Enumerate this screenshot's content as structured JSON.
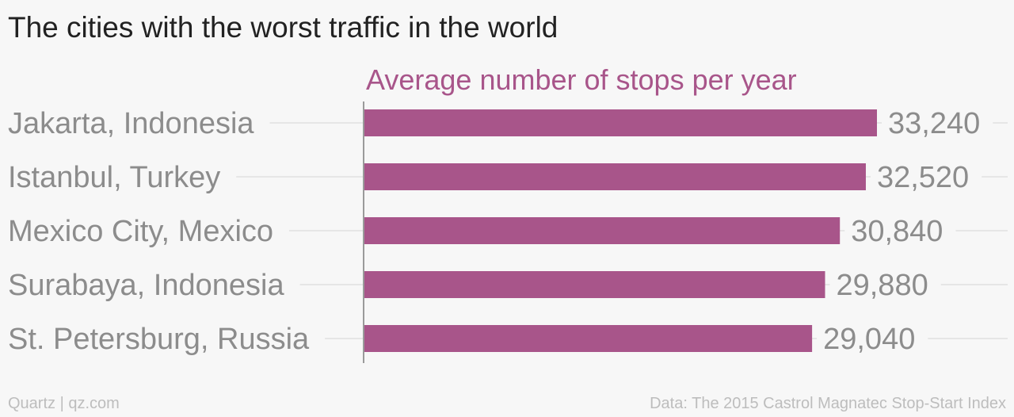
{
  "chart_data": {
    "type": "bar",
    "orientation": "horizontal",
    "title": "The cities with the worst traffic in the world",
    "series_title": "Average number of stops per year",
    "categories": [
      "Jakarta, Indonesia",
      "Istanbul, Turkey",
      "Mexico City, Mexico",
      "Surabaya, Indonesia",
      "St. Petersburg, Russia"
    ],
    "values": [
      33240,
      32520,
      30840,
      29880,
      29040
    ],
    "value_labels": [
      "33,240",
      "32,520",
      "30,840",
      "29,880",
      "29,040"
    ],
    "xlim": [
      0,
      33240
    ],
    "grid": true,
    "bar_color": "#a8558a"
  },
  "footer": {
    "credit": "Quartz | qz.com",
    "source": "Data: The 2015 Castrol Magnatec Stop-Start Index"
  }
}
